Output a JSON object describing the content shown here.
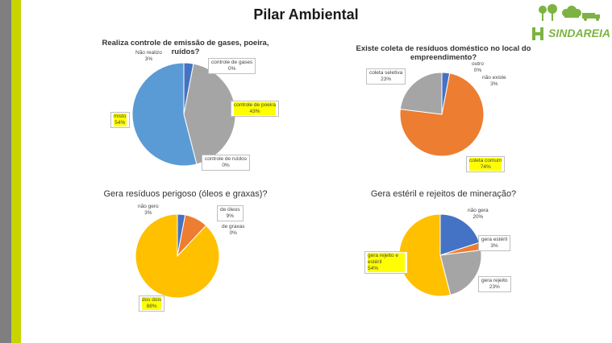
{
  "page": {
    "title": "Pilar Ambiental",
    "logo_text": "SINDAREIA"
  },
  "chart_data": [
    {
      "type": "pie",
      "title": "Realiza controle de emissão de gases, poeira, ruídos?",
      "slices": [
        {
          "label": "Não realizo",
          "value": 3,
          "value_text": "3%",
          "color": "#4472c4"
        },
        {
          "label": "controle de gases",
          "value": 0,
          "value_text": "0%",
          "color": "#ed7d31"
        },
        {
          "label": "controle de poeira",
          "value": 43,
          "value_text": "43%",
          "color": "#a5a5a5"
        },
        {
          "label": "controle de ruídos",
          "value": 0,
          "value_text": "0%",
          "color": "#ffc000"
        },
        {
          "label": "misto",
          "value": 54,
          "value_text": "54%",
          "color": "#5b9bd5"
        }
      ]
    },
    {
      "type": "pie",
      "title": "Existe coleta de resíduos doméstico no local do empreendimento?",
      "slices": [
        {
          "label": "não existe",
          "value": 3,
          "value_text": "3%",
          "color": "#4472c4"
        },
        {
          "label": "outro",
          "value": 0,
          "value_text": "0%",
          "color": "#5b9bd5"
        },
        {
          "label": "coleta comum",
          "value": 74,
          "value_text": "74%",
          "color": "#ed7d31"
        },
        {
          "label": "coleta seletiva",
          "value": 23,
          "value_text": "23%",
          "color": "#a5a5a5"
        }
      ]
    },
    {
      "type": "pie",
      "title": "Gera resíduos perigoso (óleos e graxas)?",
      "slices": [
        {
          "label": "não gero",
          "value": 3,
          "value_text": "3%",
          "color": "#4472c4"
        },
        {
          "label": "de óleos",
          "value": 9,
          "value_text": "9%",
          "color": "#ed7d31"
        },
        {
          "label": "de graxas",
          "value": 0,
          "value_text": "0%",
          "color": "#a5a5a5"
        },
        {
          "label": "dos dois",
          "value": 88,
          "value_text": "88%",
          "color": "#ffc000"
        }
      ]
    },
    {
      "type": "pie",
      "title": "Gera estéril e rejeitos de mineração?",
      "slices": [
        {
          "label": "não gera",
          "value": 20,
          "value_text": "20%",
          "color": "#4472c4"
        },
        {
          "label": "gera estéril",
          "value": 3,
          "value_text": "3%",
          "color": "#ed7d31"
        },
        {
          "label": "gera rejeito",
          "value": 23,
          "value_text": "23%",
          "color": "#a5a5a5"
        },
        {
          "label": "gera rejeito e estéril",
          "value": 54,
          "value_text": "54%",
          "color": "#ffc000"
        }
      ]
    }
  ]
}
